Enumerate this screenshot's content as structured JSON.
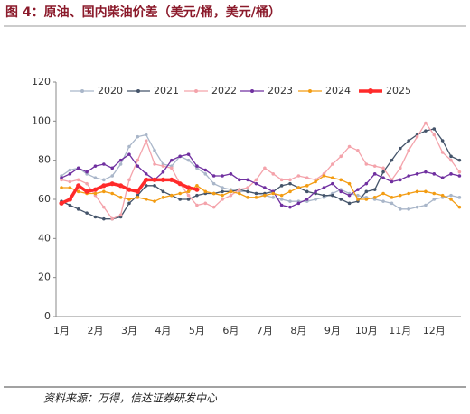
{
  "title": "图 4：原油、国内柴油价差（美元/桶，美元/桶）",
  "source": "资料来源：万得，信达证券研发中心",
  "chart_data": {
    "type": "line",
    "categories": [
      "1月",
      null,
      null,
      null,
      "2月",
      null,
      null,
      null,
      "3月",
      null,
      null,
      null,
      "4月",
      null,
      null,
      null,
      "5月",
      null,
      null,
      null,
      "6月",
      null,
      null,
      null,
      "7月",
      null,
      null,
      null,
      "8月",
      null,
      null,
      null,
      "9月",
      null,
      null,
      null,
      "10月",
      null,
      null,
      null,
      "11月",
      null,
      null,
      null,
      "12月",
      null,
      null,
      null
    ],
    "ylim": [
      0,
      120
    ],
    "yticks": [
      0,
      20,
      40,
      60,
      80,
      100,
      120
    ],
    "legend": "top",
    "series": [
      {
        "name": "2020",
        "color": "#a9b6c9",
        "values": [
          72,
          75,
          76,
          73,
          71,
          70,
          72,
          78,
          87,
          92,
          93,
          85,
          78,
          77,
          82,
          80,
          76,
          73,
          68,
          66,
          65,
          64,
          64,
          63,
          62,
          61,
          60,
          59,
          59,
          59,
          60,
          61,
          63,
          65,
          63,
          62,
          61,
          60,
          59,
          58,
          55,
          55,
          56,
          57,
          60,
          61,
          62,
          61
        ]
      },
      {
        "name": "2021",
        "color": "#44546a",
        "values": [
          59,
          57,
          55,
          53,
          51,
          50,
          50,
          51,
          58,
          62,
          67,
          67,
          64,
          62,
          60,
          60,
          62,
          63,
          63,
          64,
          64,
          65,
          64,
          63,
          63,
          64,
          67,
          68,
          66,
          64,
          63,
          62,
          62,
          60,
          58,
          59,
          64,
          65,
          74,
          80,
          86,
          90,
          93,
          95,
          96,
          90,
          82,
          80
        ]
      },
      {
        "name": "2022",
        "color": "#f4a3ab",
        "values": [
          70,
          69,
          70,
          68,
          62,
          56,
          50,
          52,
          70,
          80,
          90,
          78,
          77,
          76,
          68,
          62,
          57,
          58,
          56,
          60,
          62,
          65,
          66,
          70,
          76,
          73,
          70,
          70,
          72,
          71,
          70,
          73,
          78,
          82,
          87,
          85,
          78,
          77,
          76,
          70,
          76,
          85,
          92,
          99,
          93,
          84,
          80,
          74
        ]
      },
      {
        "name": "2023",
        "color": "#7030a0",
        "values": [
          71,
          73,
          76,
          74,
          77,
          78,
          76,
          80,
          83,
          77,
          73,
          70,
          74,
          80,
          82,
          83,
          77,
          75,
          72,
          72,
          73,
          70,
          70,
          68,
          66,
          64,
          57,
          56,
          58,
          60,
          64,
          66,
          68,
          64,
          62,
          65,
          68,
          73,
          71,
          69,
          70,
          72,
          73,
          74,
          73,
          71,
          73,
          72
        ]
      },
      {
        "name": "2024",
        "color": "#f39c12",
        "values": [
          66,
          66,
          64,
          63,
          63,
          64,
          63,
          61,
          60,
          61,
          60,
          59,
          61,
          62,
          63,
          64,
          67,
          64,
          63,
          62,
          64,
          63,
          61,
          61,
          62,
          63,
          62,
          64,
          66,
          67,
          69,
          72,
          71,
          70,
          68,
          60,
          60,
          61,
          63,
          61,
          62,
          63,
          64,
          64,
          63,
          62,
          60,
          56
        ]
      },
      {
        "name": "2025",
        "color": "#ff2a2a",
        "values": [
          58,
          60,
          67,
          64,
          65,
          67,
          68,
          67,
          65,
          64,
          70,
          70,
          70,
          70,
          68,
          66,
          65,
          null,
          null,
          null,
          null,
          null,
          null,
          null,
          null,
          null,
          null,
          null,
          null,
          null,
          null,
          null,
          null,
          null,
          null,
          null,
          null,
          null,
          null,
          null,
          null,
          null,
          null,
          null,
          null,
          null,
          null,
          null
        ]
      }
    ]
  }
}
